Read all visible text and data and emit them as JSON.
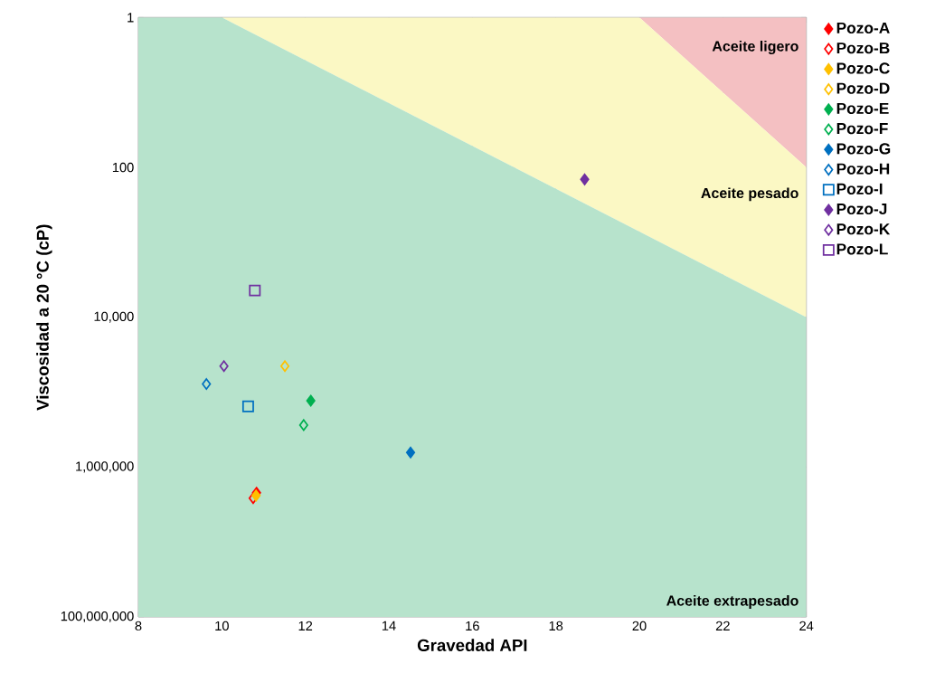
{
  "chart_data": {
    "type": "scatter",
    "xlabel": "Gravedad API",
    "ylabel": "Viscosidad a 20 °C (cP)",
    "xlim": [
      8,
      24
    ],
    "xticks": [
      8,
      10,
      12,
      14,
      16,
      18,
      20,
      22,
      24
    ],
    "ylim": [
      100000000,
      1
    ],
    "yticks": [
      1,
      100,
      {
        "value": 10000,
        "label": "10,000"
      },
      {
        "value": 1000000,
        "label": "1,000,000"
      },
      {
        "value": 100000000,
        "label": "100,000,000"
      }
    ],
    "log": "y",
    "grid": true,
    "legend": "right",
    "annotations": [
      "Aceite ligero",
      "Aceite pesado",
      "Aceite extrapesado"
    ],
    "series": [
      {
        "type": "area",
        "color": "#f4c0c2",
        "x": [
          20,
          24,
          24
        ],
        "values": [
          1,
          1,
          100
        ]
      },
      {
        "type": "area",
        "color": "#fbf8c4",
        "x": [
          10,
          20,
          24,
          24
        ],
        "values": [
          1,
          1,
          100,
          10000
        ]
      },
      {
        "type": "area",
        "color": "#b7e3cc",
        "x": [
          8,
          10,
          24,
          24,
          8
        ],
        "values": [
          1,
          1,
          10000,
          100000000,
          100000000
        ]
      },
      {
        "name": "Pozo-A",
        "color": "#ff0000",
        "marker": "diamond",
        "x": [
          10.83
        ],
        "values": [
          2200000
        ]
      },
      {
        "name": "Pozo-B",
        "color": "#ff0000",
        "marker": "diamond open",
        "x": [
          10.75
        ],
        "values": [
          2600000
        ]
      },
      {
        "name": "Pozo-C",
        "color": "#ffc000",
        "marker": "diamond",
        "x": [
          10.82
        ],
        "values": [
          2400000
        ]
      },
      {
        "name": "Pozo-D",
        "color": "#ffc000",
        "marker": "diamond open",
        "x": [
          11.51
        ],
        "values": [
          45000
        ]
      },
      {
        "name": "Pozo-E",
        "color": "#00b050",
        "marker": "diamond",
        "x": [
          12.13
        ],
        "values": [
          130000
        ]
      },
      {
        "name": "Pozo-F",
        "color": "#00b050",
        "marker": "diamond open",
        "x": [
          11.96
        ],
        "values": [
          275000
        ]
      },
      {
        "name": "Pozo-G",
        "color": "#0070c0",
        "marker": "diamond",
        "x": [
          14.52
        ],
        "values": [
          640000
        ]
      },
      {
        "name": "Pozo-H",
        "color": "#0070c0",
        "marker": "diamond open",
        "x": [
          9.63
        ],
        "values": [
          78000
        ]
      },
      {
        "name": "Pozo-I",
        "color": "#0070c0",
        "marker": "square open",
        "x": [
          10.63
        ],
        "values": [
          155000
        ]
      },
      {
        "name": "Pozo-J",
        "color": "#7030a0",
        "marker": "diamond",
        "x": [
          18.69
        ],
        "values": [
          145
        ]
      },
      {
        "name": "Pozo-K",
        "color": "#7030a0",
        "marker": "diamond open",
        "x": [
          10.05
        ],
        "values": [
          45000
        ]
      },
      {
        "name": "Pozo-L",
        "color": "#7030a0",
        "marker": "square open",
        "x": [
          10.79
        ],
        "values": [
          4400
        ]
      }
    ]
  }
}
